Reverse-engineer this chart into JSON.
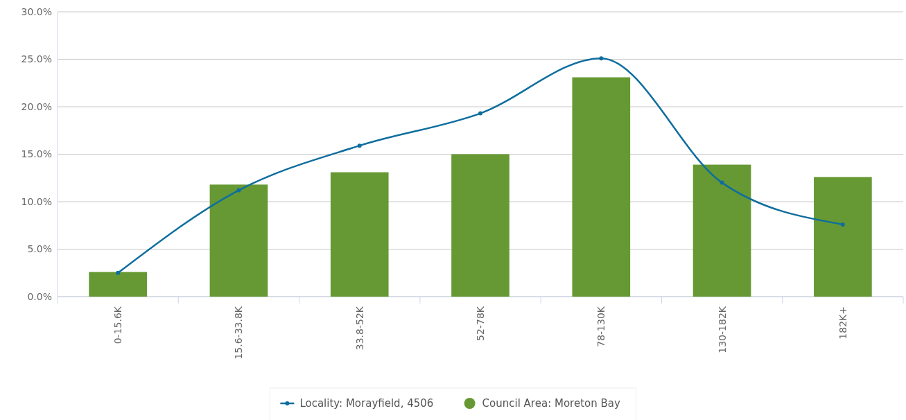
{
  "chart_data": {
    "type": "bar",
    "categories": [
      "0-15.6K",
      "15.6-33.8K",
      "33.8-52K",
      "52-78K",
      "78-130K",
      "130-182K",
      "182K+"
    ],
    "series": [
      {
        "name": "Locality: Morayfield, 4506",
        "type": "line",
        "color": "#0e6e9e",
        "marker": "circle",
        "values": [
          2.5,
          11.2,
          15.9,
          19.3,
          25.1,
          12.0,
          7.6
        ]
      },
      {
        "name": "Council Area: Moreton Bay",
        "color": "#669933",
        "values": [
          2.6,
          11.8,
          13.1,
          15.0,
          23.1,
          13.9,
          12.6
        ]
      }
    ],
    "ylim": [
      0,
      30
    ],
    "yticks": [
      {
        "value": 0,
        "label": "0.0%"
      },
      {
        "value": 5,
        "label": "5.0%"
      },
      {
        "value": 10,
        "label": "10.0%"
      },
      {
        "value": 15,
        "label": "15.0%"
      },
      {
        "value": 20,
        "label": "20.0%"
      },
      {
        "value": 25,
        "label": "25.0%"
      },
      {
        "value": 30,
        "label": "30.0%"
      }
    ],
    "grid": "y",
    "legend": "bottom"
  }
}
